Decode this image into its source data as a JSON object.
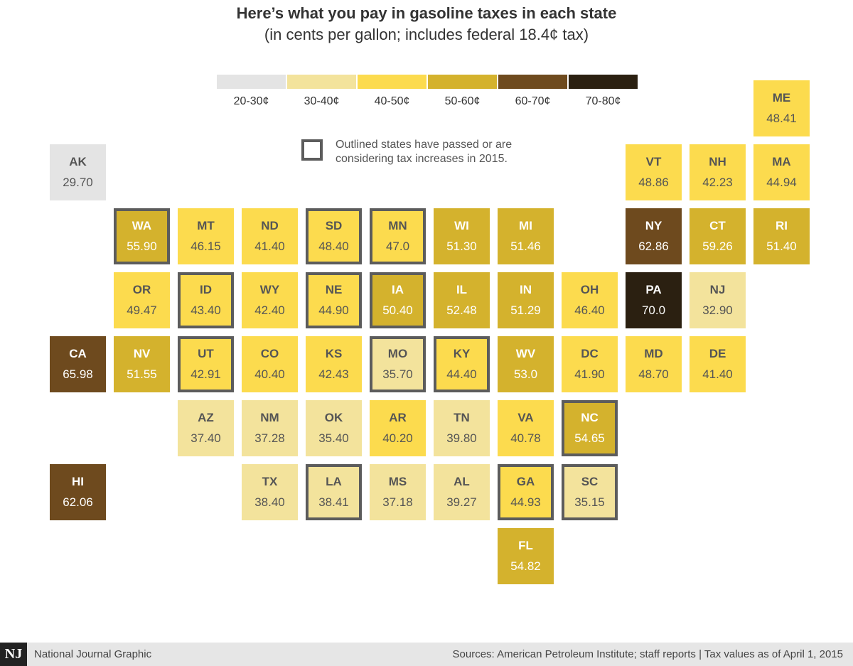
{
  "header": {
    "title": "Here’s what you pay in gasoline taxes in each state",
    "subtitle": "(in cents per gallon; includes federal 18.4¢ tax)"
  },
  "legend": {
    "items": [
      {
        "label": "20-30¢",
        "color": "#e4e4e4"
      },
      {
        "label": "30-40¢",
        "color": "#f3e39c"
      },
      {
        "label": "40-50¢",
        "color": "#fcdb4e"
      },
      {
        "label": "50-60¢",
        "color": "#d4b22d"
      },
      {
        "label": "60-70¢",
        "color": "#6e4a1e"
      },
      {
        "label": "70-80¢",
        "color": "#2b2011"
      }
    ],
    "outline_note": "Outlined states have passed or are considering tax increases in 2015."
  },
  "chart_data": {
    "type": "tile-map",
    "units": "cents per gallon",
    "states": [
      {
        "abbr": "ME",
        "value": "48.41",
        "col": 11,
        "row": 0,
        "outlined": false
      },
      {
        "abbr": "AK",
        "value": "29.70",
        "col": 0,
        "row": 1,
        "outlined": false
      },
      {
        "abbr": "VT",
        "value": "48.86",
        "col": 9,
        "row": 1,
        "outlined": false
      },
      {
        "abbr": "NH",
        "value": "42.23",
        "col": 10,
        "row": 1,
        "outlined": false
      },
      {
        "abbr": "MA",
        "value": "44.94",
        "col": 11,
        "row": 1,
        "outlined": false
      },
      {
        "abbr": "WA",
        "value": "55.90",
        "col": 1,
        "row": 2,
        "outlined": true
      },
      {
        "abbr": "MT",
        "value": "46.15",
        "col": 2,
        "row": 2,
        "outlined": false
      },
      {
        "abbr": "ND",
        "value": "41.40",
        "col": 3,
        "row": 2,
        "outlined": false
      },
      {
        "abbr": "SD",
        "value": "48.40",
        "col": 4,
        "row": 2,
        "outlined": true
      },
      {
        "abbr": "MN",
        "value": "47.0",
        "col": 5,
        "row": 2,
        "outlined": true
      },
      {
        "abbr": "WI",
        "value": "51.30",
        "col": 6,
        "row": 2,
        "outlined": false
      },
      {
        "abbr": "MI",
        "value": "51.46",
        "col": 7,
        "row": 2,
        "outlined": false
      },
      {
        "abbr": "NY",
        "value": "62.86",
        "col": 9,
        "row": 2,
        "outlined": false
      },
      {
        "abbr": "CT",
        "value": "59.26",
        "col": 10,
        "row": 2,
        "outlined": false
      },
      {
        "abbr": "RI",
        "value": "51.40",
        "col": 11,
        "row": 2,
        "outlined": false
      },
      {
        "abbr": "OR",
        "value": "49.47",
        "col": 1,
        "row": 3,
        "outlined": false
      },
      {
        "abbr": "ID",
        "value": "43.40",
        "col": 2,
        "row": 3,
        "outlined": true
      },
      {
        "abbr": "WY",
        "value": "42.40",
        "col": 3,
        "row": 3,
        "outlined": false
      },
      {
        "abbr": "NE",
        "value": "44.90",
        "col": 4,
        "row": 3,
        "outlined": true
      },
      {
        "abbr": "IA",
        "value": "50.40",
        "col": 5,
        "row": 3,
        "outlined": true
      },
      {
        "abbr": "IL",
        "value": "52.48",
        "col": 6,
        "row": 3,
        "outlined": false
      },
      {
        "abbr": "IN",
        "value": "51.29",
        "col": 7,
        "row": 3,
        "outlined": false
      },
      {
        "abbr": "OH",
        "value": "46.40",
        "col": 8,
        "row": 3,
        "outlined": false
      },
      {
        "abbr": "PA",
        "value": "70.0",
        "col": 9,
        "row": 3,
        "outlined": false
      },
      {
        "abbr": "NJ",
        "value": "32.90",
        "col": 10,
        "row": 3,
        "outlined": false
      },
      {
        "abbr": "CA",
        "value": "65.98",
        "col": 0,
        "row": 4,
        "outlined": false
      },
      {
        "abbr": "NV",
        "value": "51.55",
        "col": 1,
        "row": 4,
        "outlined": false
      },
      {
        "abbr": "UT",
        "value": "42.91",
        "col": 2,
        "row": 4,
        "outlined": true
      },
      {
        "abbr": "CO",
        "value": "40.40",
        "col": 3,
        "row": 4,
        "outlined": false
      },
      {
        "abbr": "KS",
        "value": "42.43",
        "col": 4,
        "row": 4,
        "outlined": false
      },
      {
        "abbr": "MO",
        "value": "35.70",
        "col": 5,
        "row": 4,
        "outlined": true
      },
      {
        "abbr": "KY",
        "value": "44.40",
        "col": 6,
        "row": 4,
        "outlined": true
      },
      {
        "abbr": "WV",
        "value": "53.0",
        "col": 7,
        "row": 4,
        "outlined": false
      },
      {
        "abbr": "DC",
        "value": "41.90",
        "col": 8,
        "row": 4,
        "outlined": false
      },
      {
        "abbr": "MD",
        "value": "48.70",
        "col": 9,
        "row": 4,
        "outlined": false
      },
      {
        "abbr": "DE",
        "value": "41.40",
        "col": 10,
        "row": 4,
        "outlined": false
      },
      {
        "abbr": "AZ",
        "value": "37.40",
        "col": 2,
        "row": 5,
        "outlined": false
      },
      {
        "abbr": "NM",
        "value": "37.28",
        "col": 3,
        "row": 5,
        "outlined": false
      },
      {
        "abbr": "OK",
        "value": "35.40",
        "col": 4,
        "row": 5,
        "outlined": false
      },
      {
        "abbr": "AR",
        "value": "40.20",
        "col": 5,
        "row": 5,
        "outlined": false
      },
      {
        "abbr": "TN",
        "value": "39.80",
        "col": 6,
        "row": 5,
        "outlined": false
      },
      {
        "abbr": "VA",
        "value": "40.78",
        "col": 7,
        "row": 5,
        "outlined": false
      },
      {
        "abbr": "NC",
        "value": "54.65",
        "col": 8,
        "row": 5,
        "outlined": true
      },
      {
        "abbr": "HI",
        "value": "62.06",
        "col": 0,
        "row": 6,
        "outlined": false
      },
      {
        "abbr": "TX",
        "value": "38.40",
        "col": 3,
        "row": 6,
        "outlined": false
      },
      {
        "abbr": "LA",
        "value": "38.41",
        "col": 4,
        "row": 6,
        "outlined": true
      },
      {
        "abbr": "MS",
        "value": "37.18",
        "col": 5,
        "row": 6,
        "outlined": false
      },
      {
        "abbr": "AL",
        "value": "39.27",
        "col": 6,
        "row": 6,
        "outlined": false
      },
      {
        "abbr": "GA",
        "value": "44.93",
        "col": 7,
        "row": 6,
        "outlined": true
      },
      {
        "abbr": "SC",
        "value": "35.15",
        "col": 8,
        "row": 6,
        "outlined": true
      },
      {
        "abbr": "FL",
        "value": "54.82",
        "col": 7,
        "row": 7,
        "outlined": false
      }
    ]
  },
  "footer": {
    "logo": "NJ",
    "credit": "National Journal Graphic",
    "sources": "Sources: American Petroleum Institute; staff reports  |  Tax values as of April 1, 2015"
  }
}
